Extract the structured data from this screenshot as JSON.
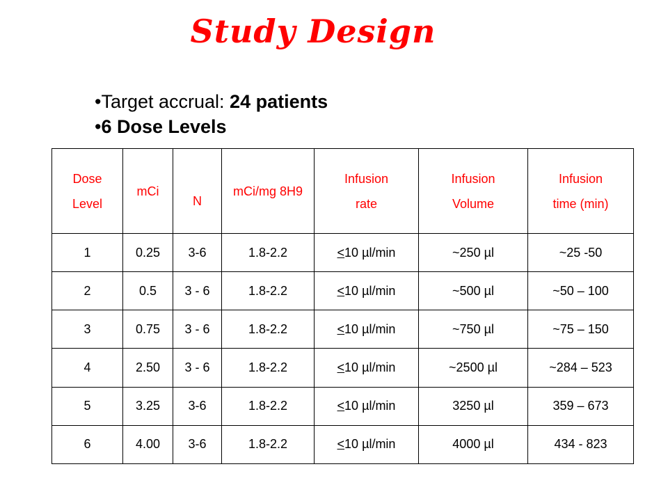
{
  "title": "Study Design",
  "bullets": [
    {
      "prefix": "•Target accrual: ",
      "bold": "24 patients"
    },
    {
      "prefix": "•",
      "bold": "6 Dose Levels"
    }
  ],
  "table": {
    "headers": [
      [
        "Dose",
        "Level"
      ],
      [
        "mCi"
      ],
      [
        "N"
      ],
      [
        "mCi/mg 8H9"
      ],
      [
        "Infusion",
        "rate"
      ],
      [
        "Infusion",
        "Volume"
      ],
      [
        "Infusion",
        "time (min)"
      ]
    ],
    "rows": [
      [
        "1",
        "0.25",
        "3-6",
        "1.8-2.2",
        "<10 µl/min",
        "~250 µl",
        "~25 -50"
      ],
      [
        "2",
        "0.5",
        "3 - 6",
        "1.8-2.2",
        "<10 µl/min",
        "~500 µl",
        "~50 – 100"
      ],
      [
        "3",
        "0.75",
        "3 - 6",
        "1.8-2.2",
        "<10 µl/min",
        "~750 µl",
        "~75 – 150"
      ],
      [
        "4",
        "2.50",
        "3 - 6",
        "1.8-2.2",
        "<10 µl/min",
        "~2500 µl",
        "~284 – 523"
      ],
      [
        "5",
        "3.25",
        "3-6",
        "1.8-2.2",
        "<10 µl/min",
        "3250 µl",
        "359 – 673"
      ],
      [
        "6",
        "4.00",
        "3-6",
        "1.8-2.2",
        "<10 µl/min",
        "4000 µl",
        "434 - 823"
      ]
    ]
  }
}
